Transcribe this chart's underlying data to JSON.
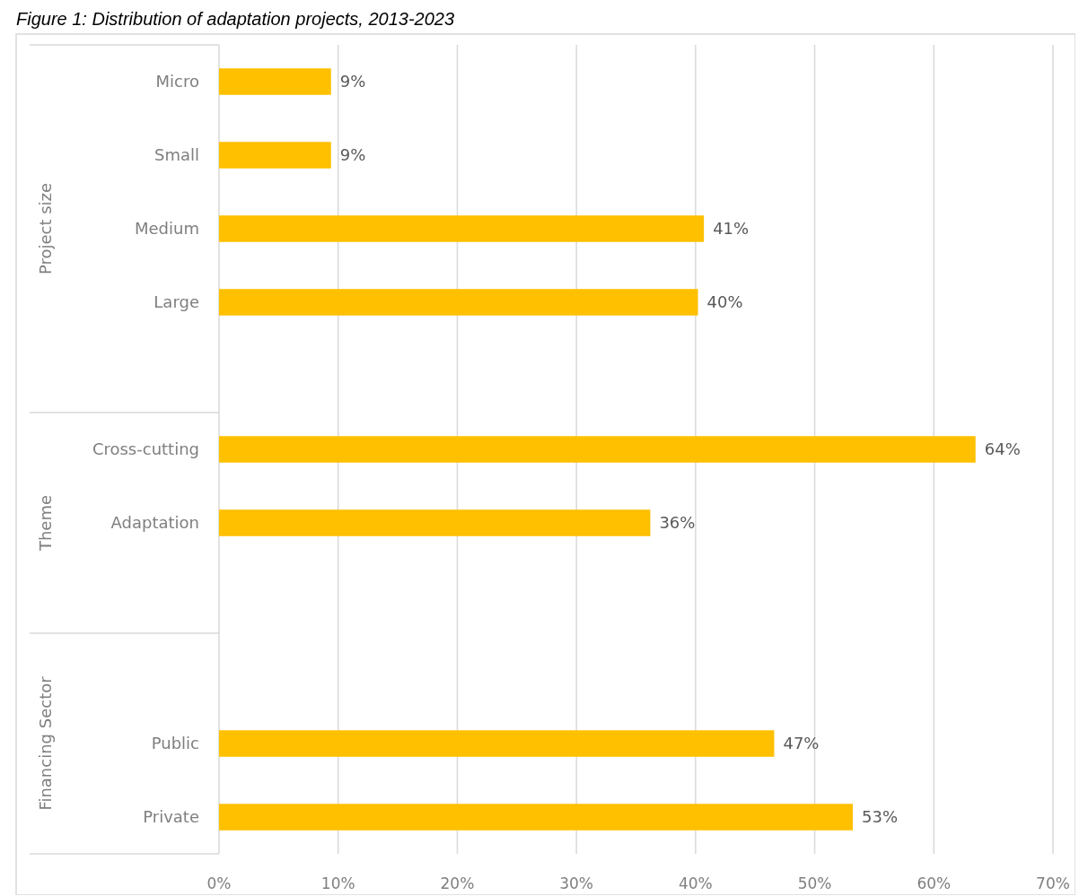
{
  "chart_data": {
    "type": "bar",
    "orientation": "horizontal",
    "title": "Figure 1: Distribution of adaptation projects, 2013-2023",
    "categories": [
      "Micro",
      "Small",
      "Medium",
      "Large",
      null,
      "Cross-cutting",
      "Adaptation",
      null,
      null,
      "Public",
      "Private"
    ],
    "values": [
      9.4,
      9.4,
      40.7,
      40.2,
      null,
      63.5,
      36.2,
      null,
      null,
      46.6,
      53.2
    ],
    "value_labels": [
      "9%",
      "9%",
      "41%",
      "40%",
      null,
      "64%",
      "36%",
      null,
      null,
      "47%",
      "53%"
    ],
    "color": "#ffc000",
    "xlim": [
      0,
      70
    ],
    "xticks": [
      {
        "value": 0,
        "label": "0%"
      },
      {
        "value": 10,
        "label": "10%"
      },
      {
        "value": 20,
        "label": "20%"
      },
      {
        "value": 30,
        "label": "30%"
      },
      {
        "value": 40,
        "label": "40%"
      },
      {
        "value": 50,
        "label": "50%"
      },
      {
        "value": 60,
        "label": "60%"
      },
      {
        "value": 70,
        "label": "70%"
      }
    ],
    "grid": "x",
    "annotations": [
      "Project size",
      "Theme",
      "Financing Sector"
    ]
  }
}
